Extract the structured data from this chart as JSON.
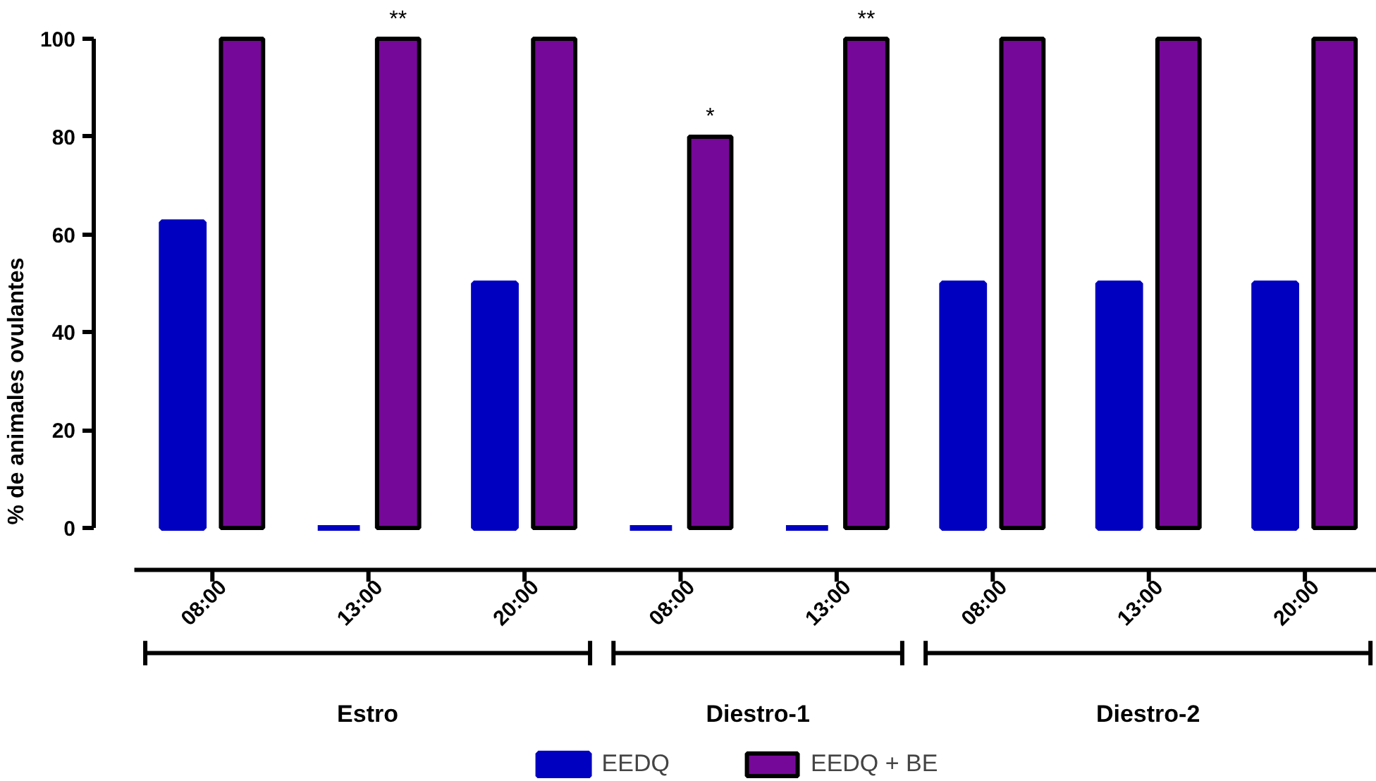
{
  "chart_data": {
    "type": "bar",
    "ylabel": "% de animales ovulantes",
    "categories": [
      "08:00",
      "13:00",
      "20:00",
      "08:00",
      "13:00",
      "08:00",
      "13:00",
      "20:00"
    ],
    "series": [
      {
        "name": "EEDQ",
        "color": "#0000c0",
        "values": [
          62.5,
          0,
          50,
          0,
          0,
          50,
          50,
          50
        ]
      },
      {
        "name": "EEDQ + BE",
        "color": "#760899",
        "values": [
          100,
          100,
          100,
          80,
          100,
          100,
          100,
          100
        ],
        "value_labels": [
          null,
          "**",
          null,
          "*",
          "**",
          null,
          null,
          null
        ]
      }
    ],
    "annotations": [
      "Estro",
      "Diestro-1",
      "Diestro-2"
    ],
    "ylim": [
      0,
      100
    ],
    "yticks": [
      0,
      20,
      40,
      60,
      80,
      100
    ],
    "grid": false,
    "legend": "bottom"
  }
}
